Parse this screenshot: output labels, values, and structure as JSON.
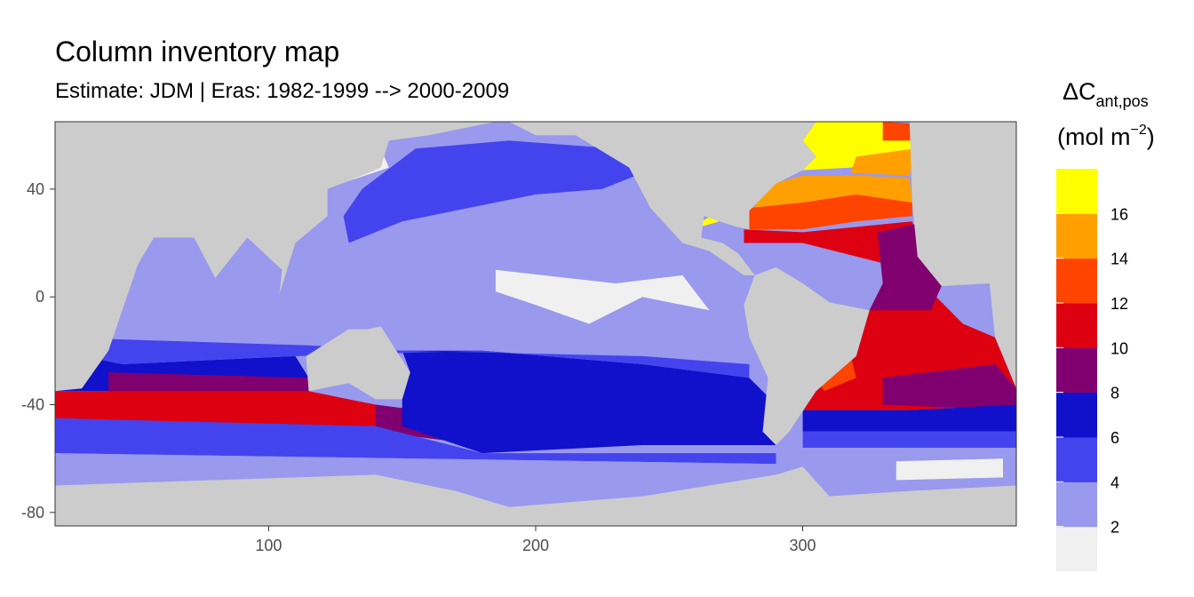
{
  "chart_data": {
    "type": "heatmap",
    "title": "Column inventory map",
    "subtitle": "Estimate: JDM  | Eras: 1982-1999 --> 2000-2009",
    "x_ticks": [
      100,
      200,
      300
    ],
    "y_ticks": [
      40,
      0,
      -40,
      -80
    ],
    "xlim": [
      20,
      380
    ],
    "ylim": [
      -85,
      65
    ],
    "grid": false,
    "legend": {
      "placement": "right",
      "title_symbol": "ΔC",
      "title_subscript": "ant,pos",
      "units_prefix": "(mol m",
      "units_exponent": "−2",
      "units_suffix": ")",
      "breaks": [
        2,
        4,
        6,
        8,
        10,
        12,
        14,
        16
      ],
      "colors": [
        "#f0f0f0",
        "#9999ee",
        "#4444ee",
        "#1111cc",
        "#800070",
        "#dd0011",
        "#ff4400",
        "#ffa000",
        "#ffff00"
      ]
    },
    "land_color": "#cccccc",
    "continents": [
      {
        "name": "Africa and Eurasia",
        "points": [
          [
            20,
            65
          ],
          [
            20,
            -35
          ],
          [
            30,
            -34
          ],
          [
            40,
            -20
          ],
          [
            51,
            12
          ],
          [
            57,
            22
          ],
          [
            72,
            22
          ],
          [
            80,
            7
          ],
          [
            92,
            22
          ],
          [
            105,
            10
          ],
          [
            104,
            1
          ],
          [
            110,
            20
          ],
          [
            122,
            30
          ],
          [
            122,
            40
          ],
          [
            130,
            43
          ],
          [
            142,
            48
          ],
          [
            145,
            58
          ],
          [
            160,
            60
          ],
          [
            190,
            66
          ],
          [
            190,
            65
          ]
        ]
      },
      {
        "name": "Australia",
        "points": [
          [
            114,
            -22
          ],
          [
            130,
            -12
          ],
          [
            137,
            -12
          ],
          [
            142,
            -11
          ],
          [
            153,
            -28
          ],
          [
            150,
            -38
          ],
          [
            140,
            -38
          ],
          [
            130,
            -32
          ],
          [
            115,
            -35
          ],
          [
            114,
            -22
          ]
        ]
      },
      {
        "name": "North America",
        "points": [
          [
            190,
            65
          ],
          [
            200,
            60
          ],
          [
            215,
            60
          ],
          [
            235,
            48
          ],
          [
            243,
            33
          ],
          [
            255,
            20
          ],
          [
            265,
            17
          ],
          [
            278,
            8
          ],
          [
            282,
            8
          ],
          [
            276,
            16
          ],
          [
            270,
            20
          ],
          [
            262,
            22
          ],
          [
            263,
            30
          ],
          [
            275,
            26
          ],
          [
            280,
            25
          ],
          [
            280,
            32
          ],
          [
            290,
            42
          ],
          [
            300,
            47
          ],
          [
            305,
            52
          ],
          [
            300,
            58
          ],
          [
            305,
            65
          ]
        ]
      },
      {
        "name": "South America",
        "points": [
          [
            282,
            8
          ],
          [
            290,
            11
          ],
          [
            300,
            5
          ],
          [
            310,
            -2
          ],
          [
            325,
            -5
          ],
          [
            320,
            -22
          ],
          [
            305,
            -35
          ],
          [
            295,
            -50
          ],
          [
            290,
            -55
          ],
          [
            285,
            -50
          ],
          [
            287,
            -30
          ],
          [
            280,
            -15
          ],
          [
            278,
            -3
          ],
          [
            282,
            8
          ]
        ]
      },
      {
        "name": "Africa east edge",
        "points": [
          [
            340,
            65
          ],
          [
            341,
            35
          ],
          [
            343,
            15
          ],
          [
            352,
            4
          ],
          [
            370,
            5
          ],
          [
            372,
            -15
          ],
          [
            380,
            -34
          ],
          [
            380,
            65
          ]
        ]
      },
      {
        "name": "Antarctica",
        "points": [
          [
            20,
            -70
          ],
          [
            80,
            -68
          ],
          [
            140,
            -66
          ],
          [
            170,
            -72
          ],
          [
            190,
            -78
          ],
          [
            240,
            -74
          ],
          [
            290,
            -66
          ],
          [
            300,
            -63
          ],
          [
            310,
            -74
          ],
          [
            340,
            -72
          ],
          [
            380,
            -70
          ],
          [
            380,
            -85
          ],
          [
            20,
            -85
          ]
        ]
      }
    ],
    "bands": [
      {
        "value": "14-16",
        "color": "#ffa000",
        "points": [
          [
            282,
            40
          ],
          [
            300,
            45
          ],
          [
            322,
            45
          ],
          [
            340,
            44
          ],
          [
            341,
            35
          ],
          [
            330,
            36
          ],
          [
            305,
            30
          ],
          [
            288,
            30
          ],
          [
            280,
            35
          ]
        ]
      },
      {
        "value": "16+",
        "color": "#ffff00",
        "points": [
          [
            300,
            47
          ],
          [
            318,
            48
          ],
          [
            335,
            50
          ],
          [
            340,
            52
          ],
          [
            342,
            62
          ],
          [
            330,
            65
          ],
          [
            305,
            65
          ],
          [
            300,
            58
          ],
          [
            305,
            52
          ]
        ]
      },
      {
        "value": "16+",
        "color": "#ffff00",
        "points": [
          [
            262,
            26
          ],
          [
            272,
            29
          ],
          [
            268,
            31
          ],
          [
            262,
            28
          ]
        ]
      },
      {
        "value": "14-16",
        "color": "#ffa000",
        "points": [
          [
            318,
            46
          ],
          [
            340,
            45
          ],
          [
            342,
            55
          ],
          [
            320,
            52
          ]
        ]
      },
      {
        "value": "12-14",
        "color": "#ff4400",
        "points": [
          [
            330,
            58
          ],
          [
            342,
            58
          ],
          [
            345,
            64
          ],
          [
            330,
            65
          ]
        ]
      },
      {
        "value": "12-14",
        "color": "#ff4400",
        "points": [
          [
            280,
            33
          ],
          [
            300,
            35
          ],
          [
            320,
            38
          ],
          [
            341,
            35
          ],
          [
            341,
            30
          ],
          [
            320,
            28
          ],
          [
            300,
            25
          ],
          [
            280,
            25
          ]
        ]
      },
      {
        "value": "10-12",
        "color": "#dd0011",
        "points": [
          [
            278,
            25
          ],
          [
            300,
            24
          ],
          [
            341,
            28
          ],
          [
            345,
            15
          ],
          [
            352,
            4
          ],
          [
            340,
            0
          ],
          [
            325,
            -5
          ],
          [
            320,
            -22
          ],
          [
            305,
            -35
          ],
          [
            300,
            -42
          ],
          [
            340,
            -42
          ],
          [
            380,
            -40
          ],
          [
            380,
            -34
          ],
          [
            372,
            -15
          ],
          [
            360,
            -10
          ],
          [
            340,
            10
          ],
          [
            300,
            20
          ],
          [
            278,
            20
          ]
        ]
      },
      {
        "value": "8-10",
        "color": "#800070",
        "points": [
          [
            328,
            24
          ],
          [
            342,
            27
          ],
          [
            343,
            15
          ],
          [
            352,
            4
          ],
          [
            348,
            -5
          ],
          [
            340,
            -5
          ],
          [
            325,
            -5
          ],
          [
            330,
            5
          ]
        ]
      },
      {
        "value": "8-10",
        "color": "#800070",
        "points": [
          [
            330,
            -30
          ],
          [
            372,
            -25
          ],
          [
            380,
            -34
          ],
          [
            380,
            -42
          ],
          [
            330,
            -40
          ]
        ]
      },
      {
        "value": "12-14",
        "color": "#ff4400",
        "points": [
          [
            305,
            -30
          ],
          [
            318,
            -22
          ],
          [
            320,
            -30
          ],
          [
            308,
            -35
          ]
        ]
      },
      {
        "value": "6-8",
        "color": "#1111cc",
        "points": [
          [
            300,
            -42
          ],
          [
            340,
            -42
          ],
          [
            380,
            -40
          ],
          [
            380,
            -50
          ],
          [
            300,
            -50
          ]
        ]
      },
      {
        "value": "4-6",
        "color": "#4444ee",
        "points": [
          [
            300,
            -50
          ],
          [
            380,
            -50
          ],
          [
            380,
            -56
          ],
          [
            300,
            -56
          ]
        ]
      },
      {
        "value": "2-4",
        "color": "#9999ee",
        "points": [
          [
            300,
            -56
          ],
          [
            380,
            -56
          ],
          [
            380,
            -70
          ],
          [
            340,
            -72
          ],
          [
            310,
            -74
          ],
          [
            300,
            -63
          ]
        ]
      },
      {
        "value": "0-2",
        "color": "#f0f0f0",
        "points": [
          [
            335,
            -61
          ],
          [
            375,
            -60
          ],
          [
            375,
            -67
          ],
          [
            335,
            -68
          ]
        ]
      },
      {
        "value": "6-8",
        "color": "#1111cc",
        "points": [
          [
            372,
            -15
          ],
          [
            378,
            -8
          ],
          [
            380,
            0
          ],
          [
            380,
            -34
          ]
        ]
      },
      {
        "value": "4-6",
        "color": "#4444ee",
        "points": [
          [
            370,
            5
          ],
          [
            380,
            4
          ],
          [
            380,
            -8
          ],
          [
            372,
            -5
          ]
        ]
      },
      {
        "value": "6-8",
        "color": "#1111cc",
        "points": [
          [
            20,
            -20
          ],
          [
            40,
            -20
          ],
          [
            45,
            -25
          ],
          [
            110,
            -22
          ],
          [
            115,
            -30
          ],
          [
            115,
            -35
          ],
          [
            20,
            -35
          ]
        ]
      },
      {
        "value": "8-10",
        "color": "#800070",
        "points": [
          [
            40,
            -28
          ],
          [
            115,
            -30
          ],
          [
            115,
            -38
          ],
          [
            40,
            -38
          ]
        ]
      },
      {
        "value": "10-12",
        "color": "#dd0011",
        "points": [
          [
            20,
            -35
          ],
          [
            115,
            -35
          ],
          [
            140,
            -40
          ],
          [
            150,
            -43
          ],
          [
            140,
            -48
          ],
          [
            115,
            -48
          ],
          [
            20,
            -45
          ]
        ]
      },
      {
        "value": "8-10",
        "color": "#800070",
        "points": [
          [
            140,
            -40
          ],
          [
            180,
            -45
          ],
          [
            240,
            -48
          ],
          [
            240,
            -52
          ],
          [
            180,
            -55
          ],
          [
            140,
            -50
          ]
        ]
      },
      {
        "value": "6-8",
        "color": "#1111cc",
        "points": [
          [
            150,
            -20
          ],
          [
            180,
            -20
          ],
          [
            240,
            -25
          ],
          [
            280,
            -30
          ],
          [
            290,
            -40
          ],
          [
            290,
            -55
          ],
          [
            240,
            -55
          ],
          [
            180,
            -58
          ],
          [
            150,
            -48
          ],
          [
            150,
            -38
          ],
          [
            153,
            -28
          ]
        ]
      },
      {
        "value": "4-6",
        "color": "#4444ee",
        "points": [
          [
            20,
            -45
          ],
          [
            140,
            -48
          ],
          [
            180,
            -58
          ],
          [
            290,
            -58
          ],
          [
            290,
            -62
          ],
          [
            20,
            -58
          ]
        ]
      },
      {
        "value": "2-4",
        "color": "#9999ee",
        "points": [
          [
            20,
            -58
          ],
          [
            290,
            -62
          ],
          [
            240,
            -74
          ],
          [
            190,
            -78
          ],
          [
            170,
            -72
          ],
          [
            140,
            -66
          ],
          [
            80,
            -68
          ],
          [
            20,
            -70
          ]
        ]
      },
      {
        "value": "4-6",
        "color": "#4444ee",
        "points": [
          [
            20,
            -15
          ],
          [
            115,
            -18
          ],
          [
            150,
            -20
          ],
          [
            240,
            -22
          ],
          [
            280,
            -25
          ],
          [
            280,
            -30
          ],
          [
            240,
            -25
          ],
          [
            180,
            -20
          ],
          [
            110,
            -22
          ],
          [
            45,
            -25
          ],
          [
            20,
            -20
          ]
        ]
      },
      {
        "value": "4-6",
        "color": "#4444ee",
        "points": [
          [
            130,
            20
          ],
          [
            150,
            28
          ],
          [
            200,
            38
          ],
          [
            225,
            40
          ],
          [
            240,
            46
          ],
          [
            230,
            55
          ],
          [
            190,
            58
          ],
          [
            155,
            55
          ],
          [
            135,
            40
          ],
          [
            128,
            30
          ]
        ]
      },
      {
        "value": "0-2",
        "color": "#f0f0f0",
        "points": [
          [
            185,
            10
          ],
          [
            230,
            5
          ],
          [
            255,
            8
          ],
          [
            265,
            -5
          ],
          [
            240,
            0
          ],
          [
            220,
            -10
          ],
          [
            200,
            -3
          ],
          [
            185,
            2
          ]
        ]
      },
      {
        "value": "0-2",
        "color": "#f0f0f0",
        "points": [
          [
            130,
            43
          ],
          [
            145,
            48
          ],
          [
            142,
            55
          ],
          [
            132,
            48
          ]
        ]
      }
    ]
  }
}
